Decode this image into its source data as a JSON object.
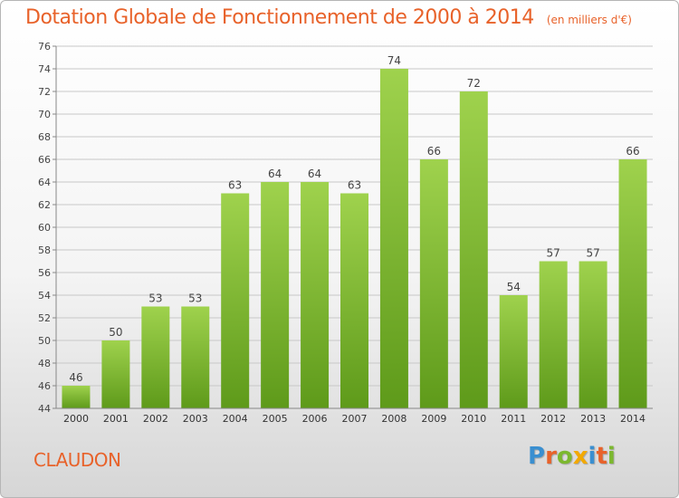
{
  "header": {
    "title": "Dotation Globale de Fonctionnement de 2000 à 2014",
    "unit": "(en milliers d'€)"
  },
  "footer": {
    "commune": "CLAUDON",
    "logo": {
      "text": "Proxiti",
      "letters": [
        {
          "ch": "P",
          "color": "#3a8fd0"
        },
        {
          "ch": "r",
          "color": "#e8622a"
        },
        {
          "ch": "o",
          "color": "#7cb82f"
        },
        {
          "ch": "x",
          "color": "#f2a900"
        },
        {
          "ch": "i",
          "color": "#3a8fd0"
        },
        {
          "ch": "t",
          "color": "#e8622a"
        },
        {
          "ch": "i",
          "color": "#7cb82f"
        }
      ]
    }
  },
  "colors": {
    "accent": "#e8622a",
    "bar_top": "#9fd24d",
    "bar_bottom": "#5e9a1a",
    "grid": "#c8c8c8"
  },
  "chart_data": {
    "type": "bar",
    "title": "Dotation Globale de Fonctionnement de 2000 à 2014",
    "subtitle": "(en milliers d'€)",
    "xlabel": "",
    "ylabel": "",
    "categories": [
      "2000",
      "2001",
      "2002",
      "2003",
      "2004",
      "2005",
      "2006",
      "2007",
      "2008",
      "2009",
      "2010",
      "2011",
      "2012",
      "2013",
      "2014"
    ],
    "values": [
      46,
      50,
      53,
      53,
      63,
      64,
      64,
      63,
      74,
      66,
      72,
      54,
      57,
      57,
      66
    ],
    "ylim": [
      44,
      76
    ],
    "yticks": [
      44,
      46,
      48,
      50,
      52,
      54,
      56,
      58,
      60,
      62,
      64,
      66,
      68,
      70,
      72,
      74,
      76
    ],
    "grid": true,
    "legend": "none",
    "data_labels": true
  }
}
